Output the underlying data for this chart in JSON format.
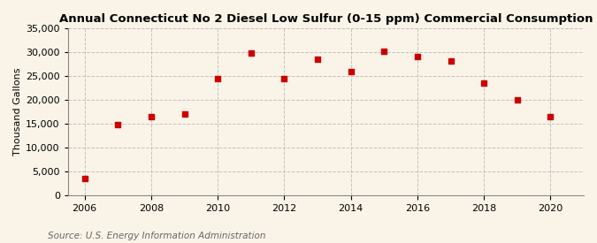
{
  "title": "Annual Connecticut No 2 Diesel Low Sulfur (0-15 ppm) Commercial Consumption",
  "ylabel": "Thousand Gallons",
  "source": "Source: U.S. Energy Information Administration",
  "background_color": "#faf4e8",
  "plot_bg_color": "#faf4e8",
  "years": [
    2006,
    2007,
    2008,
    2009,
    2010,
    2011,
    2012,
    2013,
    2014,
    2015,
    2016,
    2017,
    2018,
    2019,
    2020
  ],
  "values": [
    3500,
    14800,
    16500,
    17000,
    24500,
    29800,
    24500,
    28500,
    26000,
    30200,
    29000,
    28200,
    23600,
    20000,
    16500
  ],
  "marker_color": "#cc0000",
  "marker": "s",
  "marker_size": 18,
  "ylim": [
    0,
    35000
  ],
  "yticks": [
    0,
    5000,
    10000,
    15000,
    20000,
    25000,
    30000,
    35000
  ],
  "xlim": [
    2005.5,
    2021.0
  ],
  "xticks": [
    2006,
    2008,
    2010,
    2012,
    2014,
    2016,
    2018,
    2020
  ],
  "grid_color": "#bbbbbb",
  "grid_style": "--",
  "grid_alpha": 0.9,
  "title_fontsize": 9.5,
  "axis_fontsize": 8,
  "source_fontsize": 7.5
}
